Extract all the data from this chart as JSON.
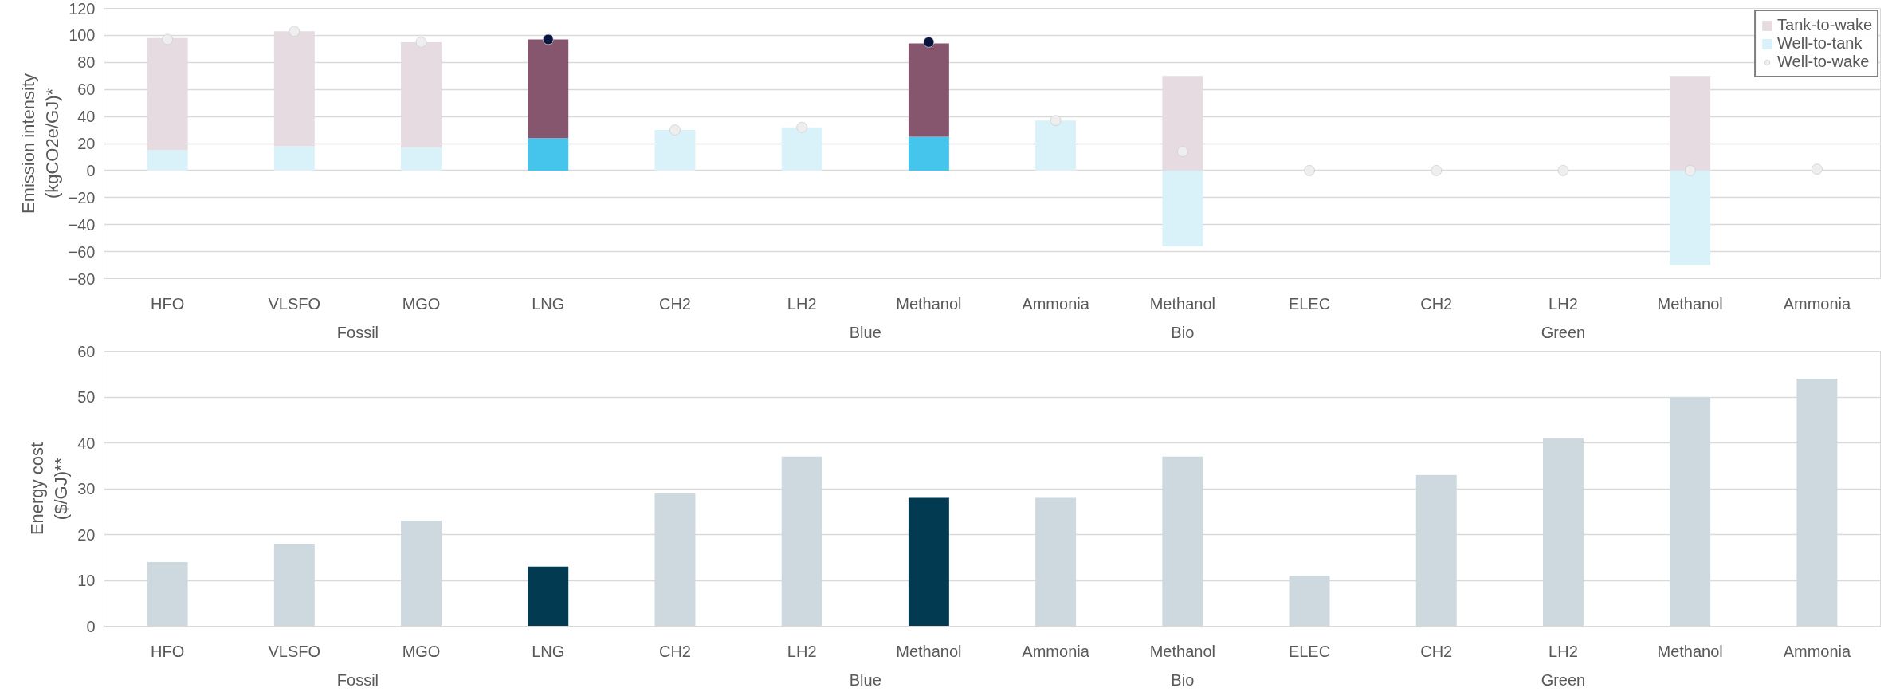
{
  "chart_data": [
    {
      "type": "bar",
      "stacked": true,
      "ylabel": "Emission intensity (kgCO2e/GJ)*",
      "categories": [
        "HFO",
        "VLSFO",
        "MGO",
        "LNG",
        "CH2",
        "LH2",
        "Methanol",
        "Ammonia",
        "Methanol",
        "ELEC",
        "CH2",
        "LH2",
        "Methanol",
        "Ammonia"
      ],
      "annotations": [
        "Fossil",
        "Blue",
        "Bio",
        "Green"
      ],
      "series": [
        {
          "name": "Well-to-tank",
          "colors": [
            "#d9f1f8",
            "#d9f1f8",
            "#d9f1f8",
            "#45c4ec",
            "#d9f1f8",
            "#d9f1f8",
            "#45c4ec",
            "#d9f1f8",
            "#d9f1f8",
            "#d9f1f8",
            "#d9f1f8",
            "#d9f1f8",
            "#d9f1f8",
            "#d9f1f8"
          ],
          "values": [
            15,
            18,
            17,
            24,
            30,
            32,
            25,
            37,
            -56,
            0,
            0,
            0,
            -70,
            0
          ]
        },
        {
          "name": "Tank-to-wake",
          "colors": [
            "#e5dbe1",
            "#e5dbe1",
            "#e5dbe1",
            "#86566e",
            "#e5dbe1",
            "#e5dbe1",
            "#86566e",
            "#e5dbe1",
            "#e5dbe1",
            "#e5dbe1",
            "#e5dbe1",
            "#e5dbe1",
            "#e5dbe1",
            "#e5dbe1"
          ],
          "values": [
            83,
            85,
            78,
            73,
            0,
            0,
            69,
            0,
            70,
            0,
            0,
            0,
            70,
            0
          ]
        },
        {
          "name": "Well-to-wake",
          "type": "scatter",
          "marker": "circle",
          "colors": [
            "#eeeeee",
            "#eeeeee",
            "#eeeeee",
            "#0a1640",
            "#eeeeee",
            "#eeeeee",
            "#0a1640",
            "#eeeeee",
            "#eeeeee",
            "#eeeeee",
            "#eeeeee",
            "#eeeeee",
            "#eeeeee",
            "#eeeeee"
          ],
          "values": [
            97,
            103,
            95,
            97,
            30,
            32,
            95,
            37,
            14,
            0,
            0,
            0,
            0,
            1
          ]
        }
      ],
      "ylim": [
        -80,
        120
      ],
      "yticks": [
        -80,
        -60,
        -40,
        -20,
        0,
        20,
        40,
        60,
        80,
        100,
        120
      ],
      "grid": "y",
      "legend": "top right"
    },
    {
      "type": "bar",
      "ylabel": "Energy cost ($/GJ)**",
      "categories": [
        "HFO",
        "VLSFO",
        "MGO",
        "LNG",
        "CH2",
        "LH2",
        "Methanol",
        "Ammonia",
        "Methanol",
        "ELEC",
        "CH2",
        "LH2",
        "Methanol",
        "Ammonia"
      ],
      "annotations": [
        "Fossil",
        "Blue",
        "Bio",
        "Green"
      ],
      "colors": [
        "#cdd9de",
        "#cdd9de",
        "#cdd9de",
        "#023a51",
        "#cdd9de",
        "#cdd9de",
        "#023a51",
        "#cdd9de",
        "#cdd9de",
        "#cdd9de",
        "#cdd9de",
        "#cdd9de",
        "#cdd9de",
        "#cdd9de"
      ],
      "values": [
        14,
        18,
        23,
        13,
        29,
        37,
        28,
        28,
        37,
        11,
        33,
        41,
        50,
        54
      ],
      "ylim": [
        0,
        60
      ],
      "yticks": [
        0,
        10,
        20,
        30,
        40,
        50,
        60
      ],
      "grid": "y"
    }
  ]
}
